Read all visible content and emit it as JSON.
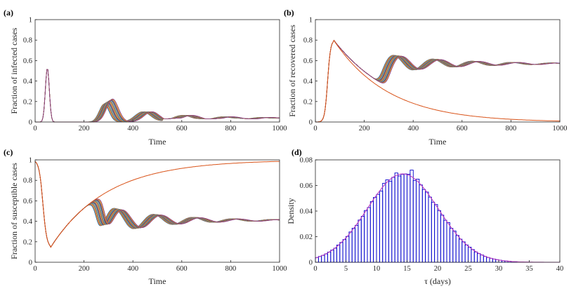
{
  "chart_data": [
    {
      "panel": "(a)",
      "type": "line",
      "xlabel": "Time",
      "ylabel": "Fraction of infected cases",
      "xlim": [
        0,
        1000
      ],
      "ylim": [
        0,
        1
      ],
      "xticks": [
        "0",
        "200",
        "400",
        "600",
        "800",
        "1000"
      ],
      "yticks": [
        "0",
        "0.2",
        "0.4",
        "0.6",
        "0.8",
        "1"
      ],
      "series_count": 18,
      "peaks": [
        {
          "t": 50,
          "y": 0.53
        },
        {
          "t": 280,
          "y": 0.2
        },
        {
          "t": 440,
          "y": 0.1
        },
        {
          "t": 600,
          "y": 0.065
        },
        {
          "t": 760,
          "y": 0.05
        },
        {
          "t": 920,
          "y": 0.045
        }
      ]
    },
    {
      "panel": "(b)",
      "type": "line",
      "xlabel": "Time",
      "ylabel": "Fraction of recovered cases",
      "xlim": [
        0,
        1000
      ],
      "ylim": [
        0,
        1
      ],
      "xticks": [
        "0",
        "200",
        "400",
        "600",
        "800",
        "1000"
      ],
      "yticks": [
        "0",
        "0.2",
        "0.4",
        "0.6",
        "0.8",
        "1"
      ],
      "series_count": 18,
      "peak": {
        "t": 75,
        "y": 0.8
      },
      "oscillation_level": 0.57,
      "reference_curve": "decay from 0.8 at t=75 toward 0 at t=1000"
    },
    {
      "panel": "(c)",
      "type": "line",
      "xlabel": "Time",
      "ylabel": "Fraction of susceptible cases",
      "xlim": [
        0,
        1000
      ],
      "ylim": [
        0,
        1
      ],
      "xticks": [
        "0",
        "200",
        "400",
        "600",
        "800",
        "1000"
      ],
      "yticks": [
        "0",
        "0.2",
        "0.4",
        "0.6",
        "0.8",
        "1"
      ],
      "series_count": 18,
      "minimum": {
        "t": 62,
        "y": 0.14
      },
      "oscillation_level": 0.41,
      "reference_curve": "rise from 0.14 at t=62 toward 1 at t=1000"
    },
    {
      "panel": "(d)",
      "type": "bar",
      "xlabel": "τ (days)",
      "ylabel": "Density",
      "xlim": [
        0,
        40
      ],
      "ylim": [
        0,
        0.08
      ],
      "xticks": [
        "0",
        "5",
        "10",
        "15",
        "20",
        "25",
        "30",
        "35",
        "40"
      ],
      "yticks": [
        "0",
        "0.02",
        "0.04",
        "0.06",
        "0.08"
      ],
      "bin_width": 0.5,
      "distribution_mean": 14.3,
      "distribution_sd": 5.8,
      "peak_density": 0.069
    }
  ],
  "colors": {
    "axis": "#262626",
    "hist_bar": "#0000cc",
    "fit_curve": "#c040c0",
    "reference": "#d95319",
    "palette": [
      "#0072bd",
      "#d95319",
      "#edb120",
      "#7e2f8e",
      "#77ac30",
      "#4dbeee",
      "#a2142f"
    ]
  }
}
